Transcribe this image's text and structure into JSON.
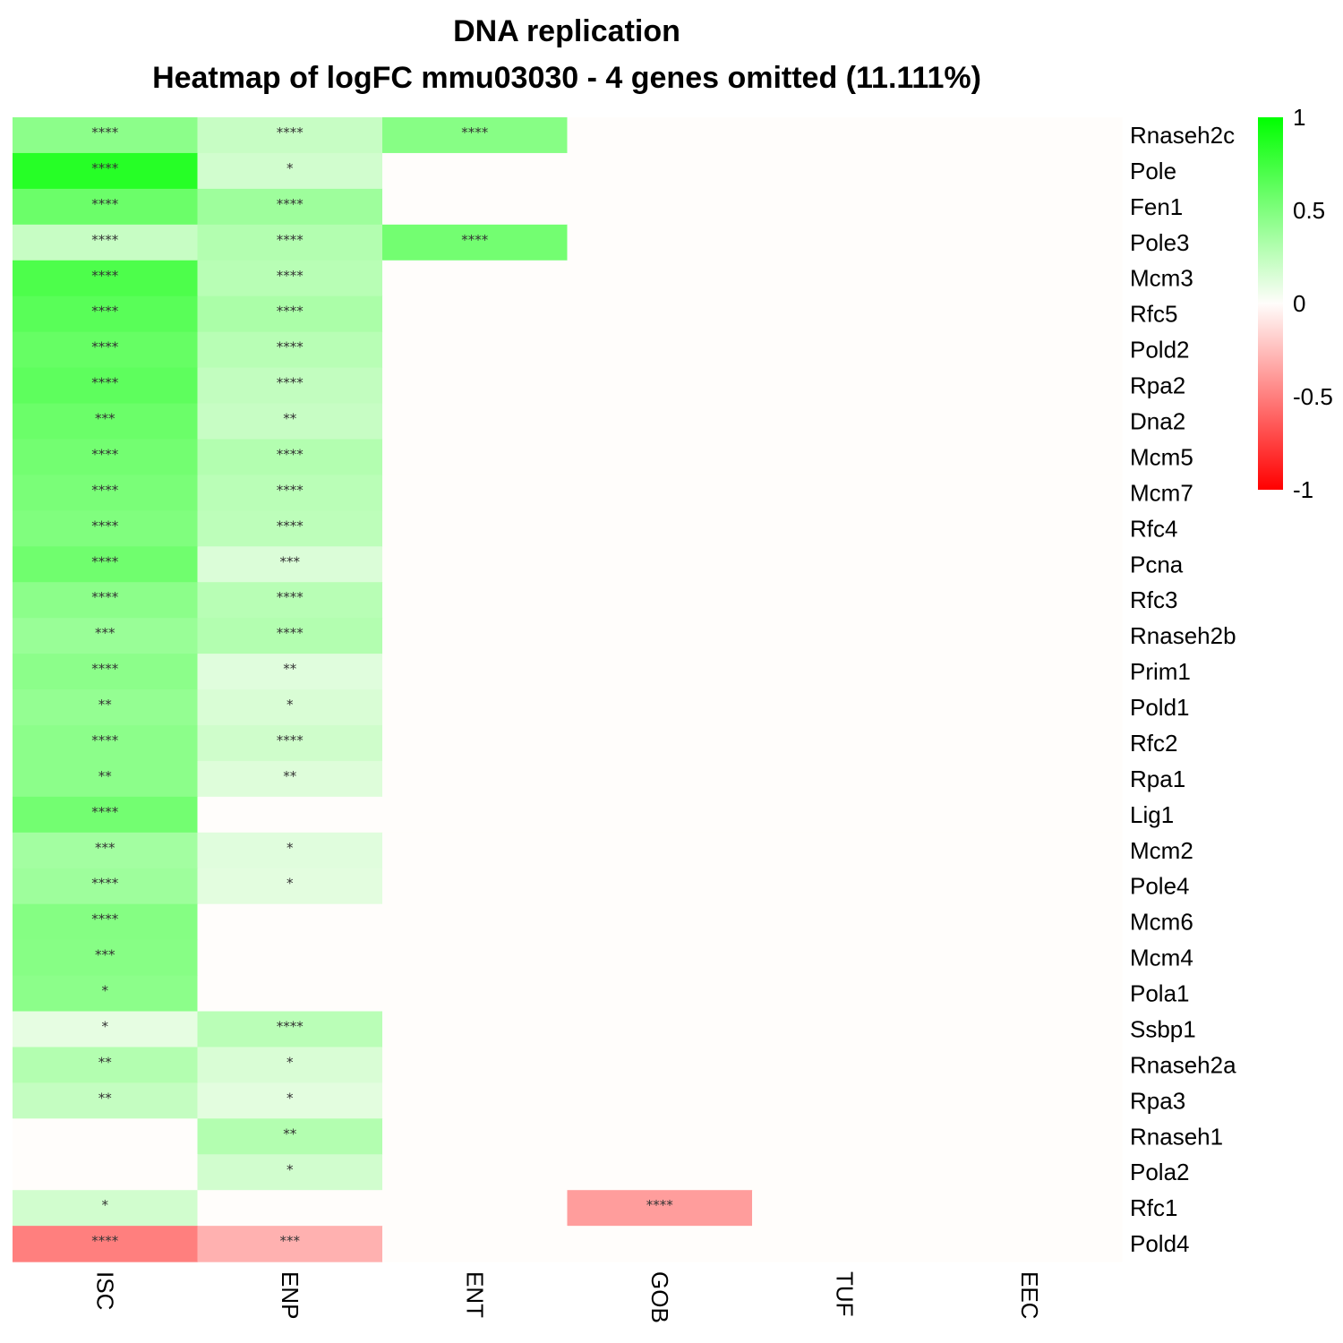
{
  "chart_data": {
    "type": "heatmap",
    "title": "DNA replication",
    "subtitle": "Heatmap of logFC mmu03030 - 4 genes omitted (11.111%)",
    "columns": [
      "ISC",
      "ENP",
      "ENT",
      "GOB",
      "TUF",
      "EEC"
    ],
    "rows": [
      "Rnaseh2c",
      "Pole",
      "Fen1",
      "Pole3",
      "Mcm3",
      "Rfc5",
      "Pold2",
      "Rpa2",
      "Dna2",
      "Mcm5",
      "Mcm7",
      "Rfc4",
      "Pcna",
      "Rfc3",
      "Rnaseh2b",
      "Prim1",
      "Pold1",
      "Rfc2",
      "Rpa1",
      "Lig1",
      "Mcm2",
      "Pole4",
      "Mcm6",
      "Mcm4",
      "Pola1",
      "Ssbp1",
      "Rnaseh2a",
      "Rpa3",
      "Rnaseh1",
      "Pola2",
      "Rfc1",
      "Pold4"
    ],
    "values": [
      [
        0.45,
        0.22,
        0.47,
        0,
        0,
        0
      ],
      [
        0.85,
        0.18,
        0,
        0,
        0,
        0
      ],
      [
        0.58,
        0.38,
        0,
        0,
        0,
        0
      ],
      [
        0.22,
        0.3,
        0.55,
        0,
        0,
        0
      ],
      [
        0.7,
        0.28,
        0,
        0,
        0,
        0
      ],
      [
        0.65,
        0.33,
        0,
        0,
        0,
        0
      ],
      [
        0.6,
        0.28,
        0,
        0,
        0,
        0
      ],
      [
        0.63,
        0.24,
        0,
        0,
        0,
        0
      ],
      [
        0.58,
        0.22,
        0,
        0,
        0,
        0
      ],
      [
        0.55,
        0.3,
        0,
        0,
        0,
        0
      ],
      [
        0.52,
        0.27,
        0,
        0,
        0,
        0
      ],
      [
        0.5,
        0.26,
        0,
        0,
        0,
        0
      ],
      [
        0.56,
        0.14,
        0,
        0,
        0,
        0
      ],
      [
        0.45,
        0.28,
        0,
        0,
        0,
        0
      ],
      [
        0.4,
        0.3,
        0,
        0,
        0,
        0
      ],
      [
        0.45,
        0.12,
        0,
        0,
        0,
        0
      ],
      [
        0.42,
        0.15,
        0,
        0,
        0,
        0
      ],
      [
        0.45,
        0.19,
        0,
        0,
        0,
        0
      ],
      [
        0.45,
        0.13,
        0,
        0,
        0,
        0
      ],
      [
        0.55,
        0,
        0,
        0,
        0,
        0
      ],
      [
        0.36,
        0.12,
        0,
        0,
        0,
        0
      ],
      [
        0.38,
        0.11,
        0,
        0,
        0,
        0
      ],
      [
        0.48,
        0,
        0,
        0,
        0,
        0
      ],
      [
        0.47,
        0,
        0,
        0,
        0,
        0
      ],
      [
        0.45,
        0,
        0,
        0,
        0,
        0
      ],
      [
        0.1,
        0.27,
        0,
        0,
        0,
        0
      ],
      [
        0.3,
        0.15,
        0,
        0,
        0,
        0
      ],
      [
        0.23,
        0.11,
        0,
        0,
        0,
        0
      ],
      [
        0,
        0.3,
        0,
        0,
        0,
        0
      ],
      [
        0,
        0.18,
        0,
        0,
        0,
        0
      ],
      [
        0.18,
        0,
        0,
        -0.38,
        0,
        0
      ],
      [
        -0.5,
        -0.3,
        0,
        0,
        0,
        0
      ]
    ],
    "significance": [
      [
        "****",
        "****",
        "****",
        "",
        "",
        ""
      ],
      [
        "****",
        "*",
        "",
        "",
        "",
        ""
      ],
      [
        "****",
        "****",
        "",
        "",
        "",
        ""
      ],
      [
        "****",
        "****",
        "****",
        "",
        "",
        ""
      ],
      [
        "****",
        "****",
        "",
        "",
        "",
        ""
      ],
      [
        "****",
        "****",
        "",
        "",
        "",
        ""
      ],
      [
        "****",
        "****",
        "",
        "",
        "",
        ""
      ],
      [
        "****",
        "****",
        "",
        "",
        "",
        ""
      ],
      [
        "***",
        "**",
        "",
        "",
        "",
        ""
      ],
      [
        "****",
        "****",
        "",
        "",
        "",
        ""
      ],
      [
        "****",
        "****",
        "",
        "",
        "",
        ""
      ],
      [
        "****",
        "****",
        "",
        "",
        "",
        ""
      ],
      [
        "****",
        "***",
        "",
        "",
        "",
        ""
      ],
      [
        "****",
        "****",
        "",
        "",
        "",
        ""
      ],
      [
        "***",
        "****",
        "",
        "",
        "",
        ""
      ],
      [
        "****",
        "**",
        "",
        "",
        "",
        ""
      ],
      [
        "**",
        "*",
        "",
        "",
        "",
        ""
      ],
      [
        "****",
        "****",
        "",
        "",
        "",
        ""
      ],
      [
        "**",
        "**",
        "",
        "",
        "",
        ""
      ],
      [
        "****",
        "",
        "",
        "",
        "",
        ""
      ],
      [
        "***",
        "*",
        "",
        "",
        "",
        ""
      ],
      [
        "****",
        "*",
        "",
        "",
        "",
        ""
      ],
      [
        "****",
        "",
        "",
        "",
        "",
        ""
      ],
      [
        "***",
        "",
        "",
        "",
        "",
        ""
      ],
      [
        "*",
        "",
        "",
        "",
        "",
        ""
      ],
      [
        "*",
        "****",
        "",
        "",
        "",
        ""
      ],
      [
        "**",
        "*",
        "",
        "",
        "",
        ""
      ],
      [
        "**",
        "*",
        "",
        "",
        "",
        ""
      ],
      [
        "",
        "**",
        "",
        "",
        "",
        ""
      ],
      [
        "",
        "*",
        "",
        "",
        "",
        ""
      ],
      [
        "*",
        "",
        "",
        "****",
        "",
        ""
      ],
      [
        "****",
        "***",
        "",
        "",
        "",
        ""
      ]
    ],
    "color_scale": {
      "min": -1,
      "max": 1,
      "low": "#ff0000",
      "mid": "#fffdfb",
      "high": "#00ff00"
    },
    "legend": {
      "ticks": [
        1,
        0.5,
        0,
        -0.5,
        -1
      ],
      "tick_labels": [
        "1",
        "0.5",
        "0",
        "-0.5",
        "-1"
      ],
      "position": "top-right"
    }
  }
}
